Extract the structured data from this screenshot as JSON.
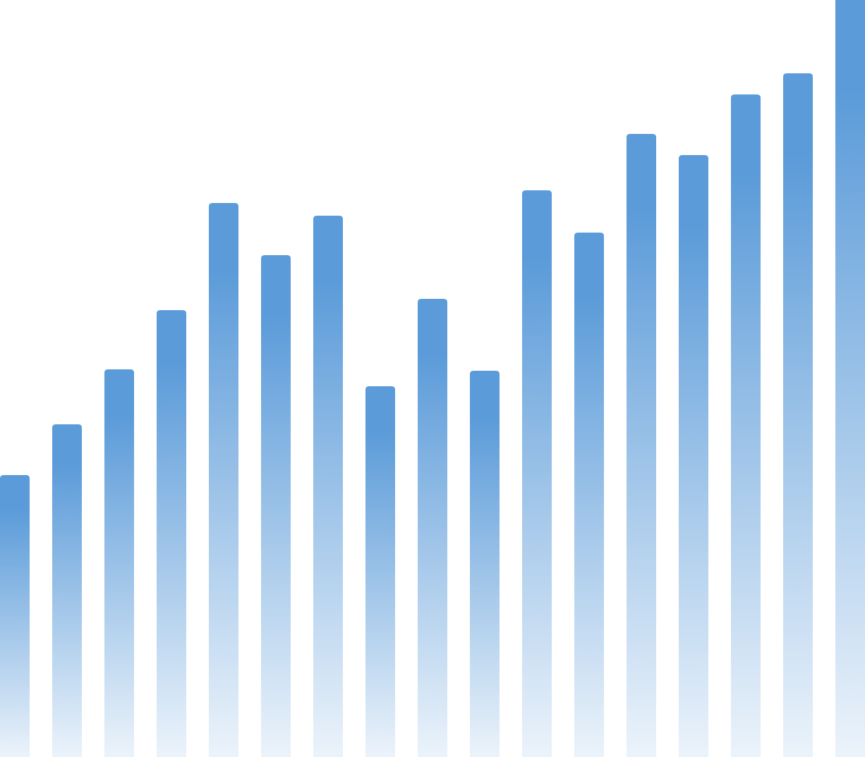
{
  "chart_data": {
    "type": "bar",
    "values": [
      400,
      472,
      550,
      634,
      786,
      712,
      768,
      526,
      650,
      548,
      804,
      744,
      884,
      854,
      940,
      970,
      1074
    ],
    "color": "#5b9bd9",
    "ylim": [
      0,
      1074
    ]
  }
}
